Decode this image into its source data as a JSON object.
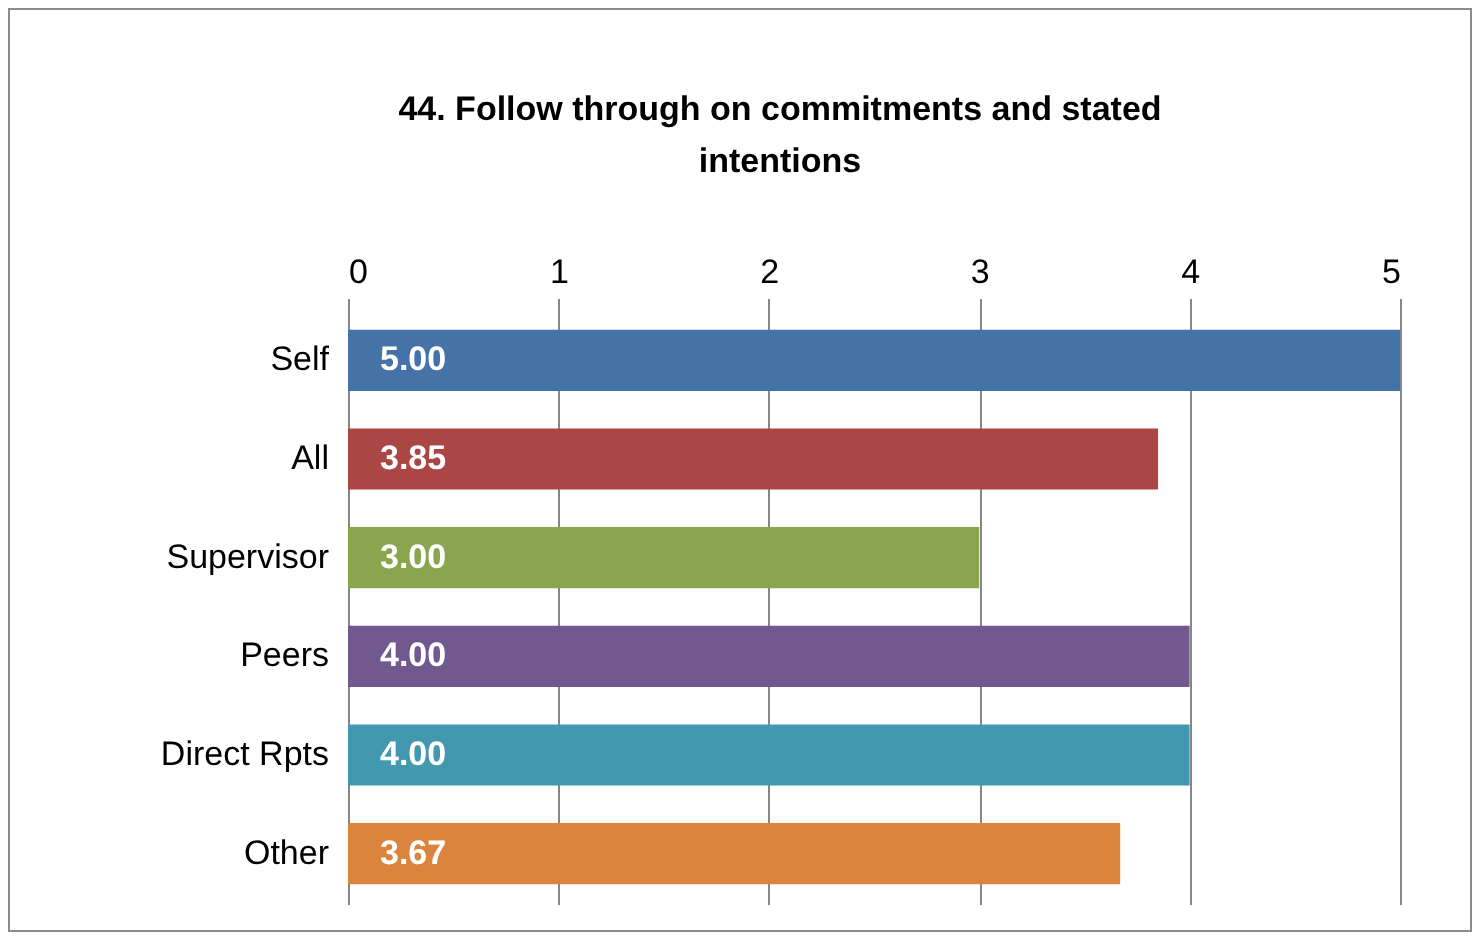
{
  "chart_data": {
    "type": "bar",
    "orientation": "horizontal",
    "title": "44. Follow through on commitments and stated intentions",
    "categories": [
      "Self",
      "All",
      "Supervisor",
      "Peers",
      "Direct Rpts",
      "Other"
    ],
    "values": [
      5.0,
      3.85,
      3.0,
      4.0,
      4.0,
      3.67
    ],
    "colors": [
      "#4572a7",
      "#aa4643",
      "#89a54e",
      "#71588f",
      "#4198af",
      "#db843d"
    ],
    "value_labels": [
      "5.00",
      "3.85",
      "3.00",
      "4.00",
      "4.00",
      "3.67"
    ],
    "xlim": [
      0,
      5
    ],
    "xticks": [
      0,
      1,
      2,
      3,
      4,
      5
    ],
    "grid": "x"
  }
}
